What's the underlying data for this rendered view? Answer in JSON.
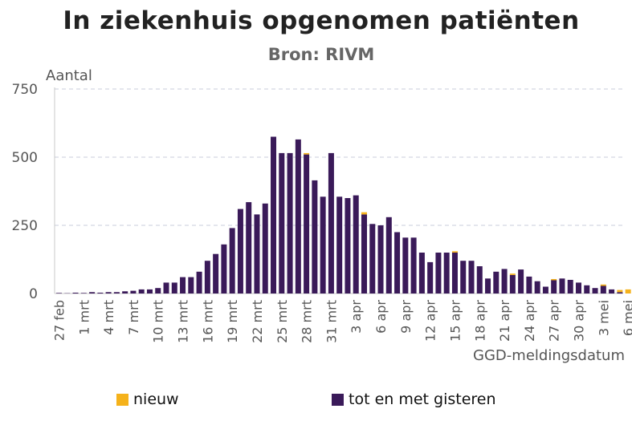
{
  "colors": {
    "nieuw": "#F5B21B",
    "gisteren": "#3A1A59",
    "grid": "#C9CEDB",
    "axis": "#C8C8C8",
    "text": "#555555"
  },
  "chart_data": {
    "type": "bar",
    "stacked": true,
    "title": "In ziekenhuis opgenomen patiënten",
    "subtitle": "Bron: RIVM",
    "ylabel": "Aantal",
    "xlabel": "GGD-meldingsdatum",
    "ylim": [
      0,
      750
    ],
    "yticks": [
      0,
      250,
      500,
      750
    ],
    "grid": true,
    "legend_position": "bottom",
    "xtick_labels": [
      "27 feb",
      "1 mrt",
      "4 mrt",
      "7 mrt",
      "10 mrt",
      "13 mrt",
      "16 mrt",
      "19 mrt",
      "22 mrt",
      "25 mrt",
      "28 mrt",
      "31 mrt",
      "3 apr",
      "6 apr",
      "9 apr",
      "12 apr",
      "15 apr",
      "18 apr",
      "21 apr",
      "24 apr",
      "27 apr",
      "30 apr",
      "3 mei",
      "6 mei"
    ],
    "categories": [
      "27 feb",
      "28 feb",
      "29 feb",
      "1 mrt",
      "2 mrt",
      "3 mrt",
      "4 mrt",
      "5 mrt",
      "6 mrt",
      "7 mrt",
      "8 mrt",
      "9 mrt",
      "10 mrt",
      "11 mrt",
      "12 mrt",
      "13 mrt",
      "14 mrt",
      "15 mrt",
      "16 mrt",
      "17 mrt",
      "18 mrt",
      "19 mrt",
      "20 mrt",
      "21 mrt",
      "22 mrt",
      "23 mrt",
      "24 mrt",
      "25 mrt",
      "26 mrt",
      "27 mrt",
      "28 mrt",
      "29 mrt",
      "30 mrt",
      "31 mrt",
      "1 apr",
      "2 apr",
      "3 apr",
      "4 apr",
      "5 apr",
      "6 apr",
      "7 apr",
      "8 apr",
      "9 apr",
      "10 apr",
      "11 apr",
      "12 apr",
      "13 apr",
      "14 apr",
      "15 apr",
      "16 apr",
      "17 apr",
      "18 apr",
      "19 apr",
      "20 apr",
      "21 apr",
      "22 apr",
      "23 apr",
      "24 apr",
      "25 apr",
      "26 apr",
      "27 apr",
      "28 apr",
      "29 apr",
      "30 apr",
      "1 mei",
      "2 mei",
      "3 mei",
      "4 mei",
      "5 mei",
      "6 mei"
    ],
    "series": [
      {
        "name": "tot en met gisteren",
        "key": "gisteren",
        "values": [
          2,
          1,
          3,
          2,
          5,
          3,
          5,
          5,
          8,
          10,
          15,
          15,
          20,
          40,
          40,
          60,
          60,
          80,
          120,
          145,
          180,
          240,
          310,
          335,
          290,
          330,
          575,
          515,
          515,
          565,
          510,
          415,
          355,
          515,
          355,
          350,
          360,
          290,
          255,
          250,
          280,
          225,
          205,
          205,
          150,
          115,
          150,
          150,
          150,
          120,
          120,
          100,
          55,
          80,
          90,
          68,
          88,
          62,
          45,
          25,
          50,
          55,
          50,
          40,
          30,
          20,
          28,
          15,
          5,
          0
        ]
      },
      {
        "name": "nieuw",
        "key": "nieuw",
        "values": [
          0,
          0,
          0,
          0,
          0,
          0,
          0,
          0,
          0,
          0,
          0,
          0,
          0,
          0,
          0,
          0,
          0,
          0,
          0,
          0,
          0,
          0,
          0,
          0,
          0,
          0,
          0,
          0,
          0,
          0,
          5,
          0,
          0,
          0,
          0,
          0,
          0,
          8,
          0,
          0,
          0,
          0,
          0,
          0,
          0,
          0,
          0,
          0,
          5,
          0,
          0,
          0,
          0,
          0,
          0,
          5,
          0,
          0,
          0,
          0,
          3,
          0,
          0,
          0,
          0,
          0,
          5,
          0,
          8,
          15
        ]
      }
    ]
  },
  "legend": {
    "nieuw_label": "nieuw",
    "gisteren_label": "tot en met gisteren"
  }
}
